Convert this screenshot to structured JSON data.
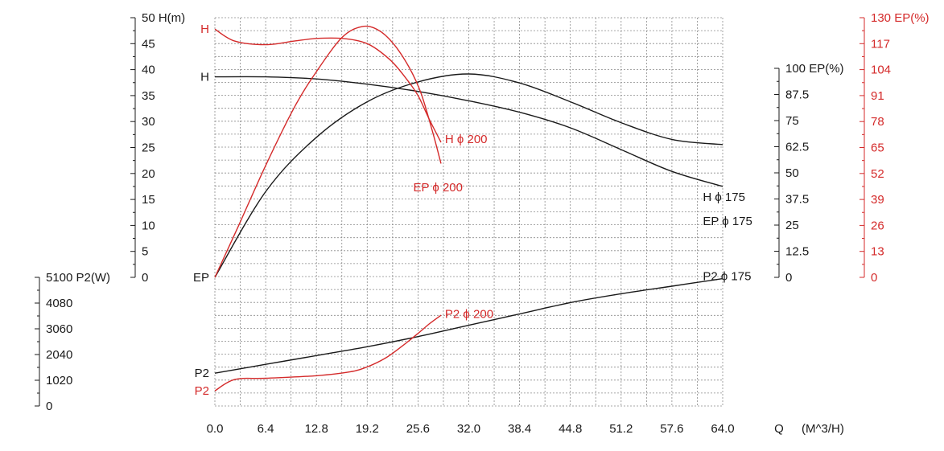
{
  "chart_data": {
    "type": "line",
    "colors": {
      "black": "#1a1a1a",
      "red": "#d42a2a",
      "grid": "#8a8a8a"
    },
    "grid": true,
    "x_axis": {
      "label": "Q",
      "unit": "(M^3/H)",
      "range": [
        0,
        64
      ],
      "ticks": [
        "0.0",
        "6.4",
        "12.8",
        "19.2",
        "25.6",
        "32.0",
        "38.4",
        "44.8",
        "51.2",
        "57.6",
        "64.0"
      ],
      "tick_values": [
        0,
        6.4,
        12.8,
        19.2,
        25.6,
        32,
        38.4,
        44.8,
        51.2,
        57.6,
        64
      ]
    },
    "axes": {
      "head": {
        "label": "50 H(m)",
        "range": [
          0,
          50
        ],
        "ticks": [
          "45",
          "40",
          "35",
          "30",
          "25",
          "20",
          "15",
          "10",
          "5",
          "0"
        ],
        "tick_values": [
          45,
          40,
          35,
          30,
          25,
          20,
          15,
          10,
          5,
          0
        ]
      },
      "power": {
        "label": "5100 P2(W)",
        "range": [
          0,
          5100
        ],
        "ticks": [
          "4080",
          "3060",
          "2040",
          "1020",
          "0"
        ],
        "tick_values": [
          4080,
          3060,
          2040,
          1020,
          0
        ]
      },
      "eff_black": {
        "label": "100 EP(%)",
        "range": [
          0,
          100
        ],
        "ticks": [
          "87.5",
          "75",
          "62.5",
          "50",
          "37.5",
          "25",
          "12.5",
          "0"
        ],
        "tick_values": [
          87.5,
          75,
          62.5,
          50,
          37.5,
          25,
          12.5,
          0
        ]
      },
      "eff_red": {
        "label": "130 EP(%)",
        "range": [
          0,
          130
        ],
        "ticks": [
          "117",
          "104",
          "91",
          "78",
          "65",
          "52",
          "39",
          "26",
          "13",
          "0"
        ],
        "tick_values": [
          117,
          104,
          91,
          78,
          65,
          52,
          39,
          26,
          13,
          0
        ]
      }
    },
    "left_labels": [
      {
        "text": "H",
        "color": "red",
        "axis": "head",
        "value": 47.8
      },
      {
        "text": "H",
        "color": "black",
        "axis": "head",
        "value": 38.6
      },
      {
        "text": "EP",
        "color": "black",
        "axis": "head",
        "value": 0
      },
      {
        "text": "P2",
        "color": "black",
        "axis": "power",
        "value": 1300
      },
      {
        "text": "P2",
        "color": "red",
        "axis": "power",
        "value": 600
      }
    ],
    "series": [
      {
        "name": "H ϕ 175",
        "color": "black",
        "axis": "head",
        "x": [
          0,
          6.4,
          12.8,
          19.2,
          25.6,
          32,
          38.4,
          44.8,
          51.2,
          57.6,
          64
        ],
        "y": [
          38.6,
          38.6,
          38.2,
          37.2,
          35.8,
          34.0,
          31.8,
          28.8,
          24.6,
          20.4,
          17.5
        ],
        "label_at": [
          61.5,
          15.5
        ]
      },
      {
        "name": "EP ϕ 175",
        "color": "black",
        "axis": "eff_black",
        "x": [
          0,
          6.4,
          12.8,
          19.2,
          25.6,
          32,
          38.4,
          44.8,
          51.2,
          57.6,
          64
        ],
        "y": [
          0,
          41,
          67,
          84,
          93.5,
          97.3,
          93,
          84,
          74,
          66,
          63.5
        ],
        "label_at": [
          61.5,
          27
        ]
      },
      {
        "name": "P2 ϕ 175",
        "color": "black",
        "axis": "power",
        "x": [
          0,
          6.4,
          12.8,
          19.2,
          25.6,
          32,
          38.4,
          44.8,
          51.2,
          57.6,
          64
        ],
        "y": [
          1300,
          1650,
          2000,
          2350,
          2750,
          3200,
          3650,
          4100,
          4450,
          4750,
          5050
        ],
        "label_at": [
          61.5,
          5150
        ]
      },
      {
        "name": "H ϕ 200",
        "color": "red",
        "axis": "head",
        "x": [
          0,
          2.5,
          6.4,
          10,
          12.8,
          16,
          19.2,
          22,
          24,
          25.6,
          27,
          28.5
        ],
        "y": [
          47.8,
          45.5,
          44.8,
          45.5,
          46.0,
          46.0,
          45.0,
          42.0,
          38.5,
          35.0,
          30.5,
          26.0
        ],
        "label_at": [
          29.0,
          26.6
        ]
      },
      {
        "name": "EP ϕ 200",
        "color": "red",
        "axis": "eff_red",
        "x": [
          0,
          3,
          6.4,
          10,
          12.8,
          16,
          18.5,
          20.5,
          22.5,
          24.5,
          26,
          27.5,
          28.5
        ],
        "y": [
          0,
          26,
          56,
          85,
          103,
          120,
          125.5,
          124,
          117,
          105,
          92,
          72,
          57
        ],
        "label_at": [
          25.0,
          45
        ]
      },
      {
        "name": "P2 ϕ 200",
        "color": "red",
        "axis": "power",
        "x": [
          0,
          2.5,
          6.4,
          12.8,
          17,
          19.2,
          21.5,
          23.5,
          25.5,
          27,
          28.5
        ],
        "y": [
          600,
          1050,
          1100,
          1200,
          1350,
          1550,
          1900,
          2350,
          2850,
          3250,
          3600
        ],
        "label_at": [
          29.0,
          3650
        ]
      }
    ]
  }
}
